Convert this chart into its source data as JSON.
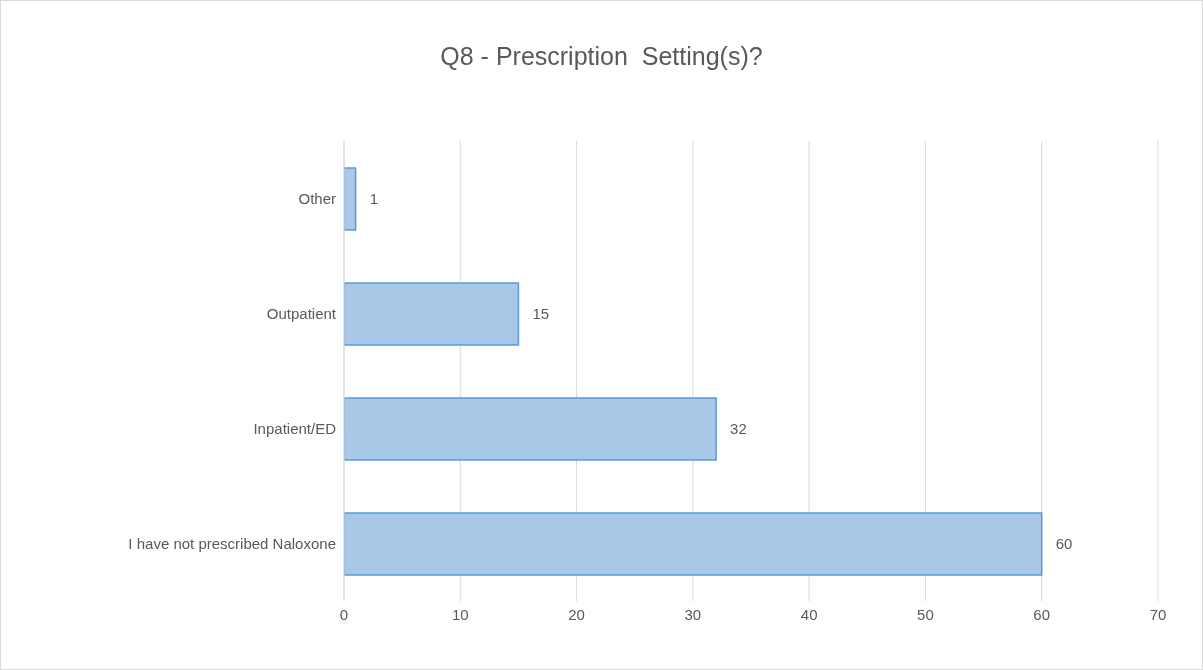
{
  "chart_data": {
    "type": "bar",
    "orientation": "horizontal",
    "title": "Q8 - Prescription  Setting(s)?",
    "categories": [
      "Other",
      "Outpatient",
      "Inpatient/ED",
      "I have not prescribed Naloxone"
    ],
    "values": [
      1,
      15,
      32,
      60
    ],
    "color": "#a9c8e8",
    "xlim": [
      0,
      70
    ],
    "xticks": [
      0,
      10,
      20,
      30,
      40,
      50,
      60,
      70
    ],
    "grid": "x",
    "data_labels": true
  }
}
